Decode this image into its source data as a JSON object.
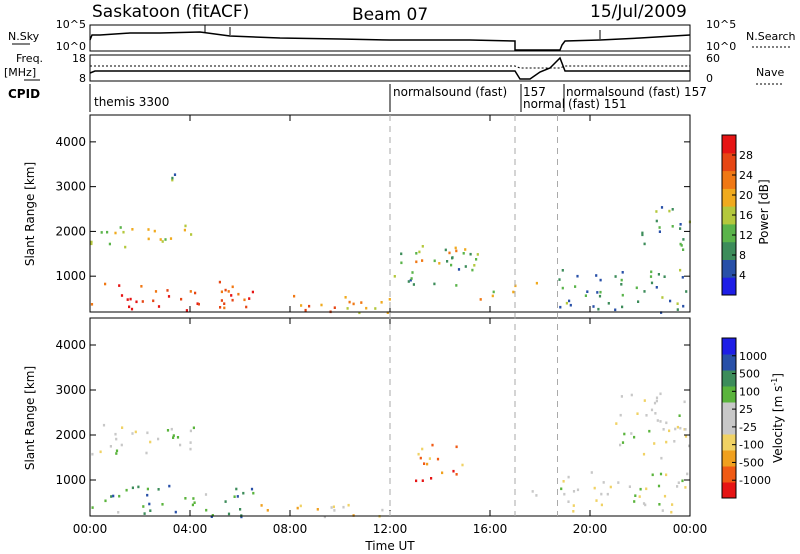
{
  "header": {
    "station": "Saskatoon (fitACF)",
    "beam": "Beam 07",
    "date": "15/Jul/2009"
  },
  "labels": {
    "nsky": "N.Sky",
    "nsearch": "N.Search",
    "freq": "Freq.",
    "freq_unit": "[MHz]",
    "nave": "Nave",
    "cpid": "CPID",
    "time_axis": "Time UT"
  },
  "noise_panel": {
    "left_ticks": [
      "10^5",
      "10^0"
    ],
    "right_ticks": [
      "10^5",
      "10^0"
    ]
  },
  "freq_panel": {
    "left_ticks": [
      "18",
      "8"
    ],
    "right_ticks": [
      "60",
      "0"
    ]
  },
  "cpid_segments": [
    {
      "label": "themis 3300"
    },
    {
      "label": "normalsound (fast)"
    },
    {
      "label": "157"
    },
    {
      "label": "normal"
    },
    {
      "label": "normalsound (fast) 157"
    },
    {
      "label": "(fast) 151"
    }
  ],
  "colors": {
    "power": [
      "#1e1ee6",
      "#2850a8",
      "#3c8c5a",
      "#5ab44a",
      "#b4c83c",
      "#f0aa1e",
      "#f07814",
      "#e64614",
      "#e61414"
    ],
    "velocity": [
      "#e61414",
      "#f05a14",
      "#f0a01e",
      "#f0d264",
      "#c8c8c8",
      "#c8c8c8",
      "#5ab43c",
      "#3c8c5a",
      "#2850a8",
      "#1e1ee6"
    ]
  },
  "chart_data": [
    {
      "type": "heatmap",
      "title": "",
      "xlabel": "",
      "ylabel": "Slant Range [km]",
      "x_ticks": [
        "00:00",
        "04:00",
        "08:00",
        "12:00",
        "16:00",
        "20:00",
        "00:00"
      ],
      "y_ticks": [
        "1000",
        "2000",
        "3000",
        "4000"
      ],
      "ylim": [
        200,
        4600
      ],
      "colorbar": {
        "label": "Power [dB]",
        "ticks": [
          "4",
          "8",
          "12",
          "16",
          "20",
          "24",
          "28"
        ]
      },
      "regions": [
        {
          "t0": 0.0,
          "t1": 6.5,
          "r0": 200,
          "r1": 900,
          "level": 0.85
        },
        {
          "t0": 0.0,
          "t1": 2.0,
          "r0": 1600,
          "r1": 2200,
          "level": 0.45
        },
        {
          "t0": 2.0,
          "t1": 4.5,
          "r0": 1800,
          "r1": 2300,
          "level": 0.5
        },
        {
          "t0": 3.0,
          "t1": 4.0,
          "r0": 3000,
          "r1": 3300,
          "level": 0.3
        },
        {
          "t0": 6.5,
          "t1": 12.0,
          "r0": 200,
          "r1": 600,
          "level": 0.65
        },
        {
          "t0": 12.0,
          "t1": 15.5,
          "r0": 800,
          "r1": 1700,
          "level": 0.35
        },
        {
          "t0": 13.0,
          "t1": 15.0,
          "r0": 1300,
          "r1": 1800,
          "level": 0.55
        },
        {
          "t0": 15.5,
          "t1": 17.0,
          "r0": 500,
          "r1": 900,
          "level": 0.55
        },
        {
          "t0": 17.5,
          "t1": 18.3,
          "r0": 700,
          "r1": 900,
          "level": 0.6
        },
        {
          "t0": 18.7,
          "t1": 24.0,
          "r0": 200,
          "r1": 1200,
          "level": 0.3
        },
        {
          "t0": 22.0,
          "t1": 24.0,
          "r0": 1600,
          "r1": 2700,
          "level": 0.35
        }
      ]
    },
    {
      "type": "heatmap",
      "title": "",
      "xlabel": "Time UT",
      "ylabel": "Slant Range [km]",
      "x_ticks": [
        "00:00",
        "04:00",
        "08:00",
        "12:00",
        "16:00",
        "20:00",
        "00:00"
      ],
      "y_ticks": [
        "1000",
        "2000",
        "3000",
        "4000"
      ],
      "ylim": [
        200,
        4600
      ],
      "colorbar": {
        "label": "Velocity [m s^-1]",
        "ticks": [
          "-1000",
          "-500",
          "-100",
          "-25",
          "25",
          "100",
          "500",
          "1000"
        ]
      },
      "regions": [
        {
          "t0": 0.0,
          "t1": 6.5,
          "r0": 200,
          "r1": 900,
          "level": 0.7
        },
        {
          "t0": 0.0,
          "t1": 4.5,
          "r0": 1600,
          "r1": 2300,
          "level": 0.5
        },
        {
          "t0": 6.5,
          "t1": 12.0,
          "r0": 200,
          "r1": 500,
          "level": 0.45
        },
        {
          "t0": 13.0,
          "t1": 15.2,
          "r0": 1000,
          "r1": 1900,
          "level": 0.18
        },
        {
          "t0": 17.5,
          "t1": 18.3,
          "r0": 600,
          "r1": 900,
          "level": 0.5
        },
        {
          "t0": 18.7,
          "t1": 24.0,
          "r0": 300,
          "r1": 1200,
          "level": 0.5
        },
        {
          "t0": 21.0,
          "t1": 24.0,
          "r0": 1500,
          "r1": 3000,
          "level": 0.5
        }
      ]
    }
  ]
}
